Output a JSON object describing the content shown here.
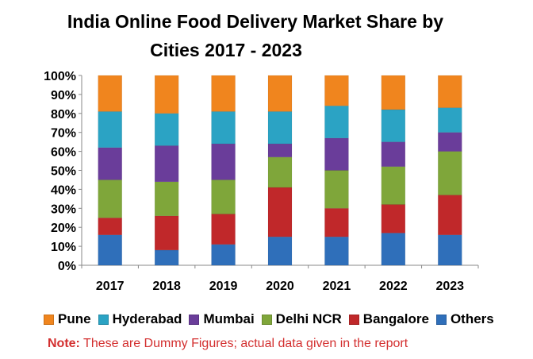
{
  "chart_data": {
    "type": "bar",
    "stacked": true,
    "title_line1": "India Online Food Delivery Market Share by",
    "title_line2": "Cities 2017 - 2023",
    "categories": [
      "2017",
      "2018",
      "2019",
      "2020",
      "2021",
      "2022",
      "2023"
    ],
    "ylim": [
      0,
      100
    ],
    "yticks": [
      "0%",
      "10%",
      "20%",
      "30%",
      "40%",
      "50%",
      "60%",
      "70%",
      "80%",
      "90%",
      "100%"
    ],
    "grid": false,
    "legend_position": "bottom",
    "series": [
      {
        "name": "Others",
        "color": "#2f6fba",
        "values": [
          16,
          8,
          11,
          15,
          15,
          17,
          16
        ]
      },
      {
        "name": "Bangalore",
        "color": "#c0282a",
        "values": [
          9,
          18,
          16,
          26,
          15,
          15,
          21
        ]
      },
      {
        "name": "Delhi NCR",
        "color": "#7fa63a",
        "values": [
          20,
          18,
          18,
          16,
          20,
          20,
          23
        ]
      },
      {
        "name": "Mumbai",
        "color": "#6a3d9a",
        "values": [
          17,
          19,
          19,
          7,
          17,
          13,
          10
        ]
      },
      {
        "name": "Hyderabad",
        "color": "#2ba3c4",
        "values": [
          19,
          17,
          17,
          17,
          17,
          17,
          13
        ]
      },
      {
        "name": "Pune",
        "color": "#f0851e",
        "values": [
          19,
          20,
          19,
          19,
          16,
          18,
          17
        ]
      }
    ],
    "legend_order": [
      "Pune",
      "Hyderabad",
      "Mumbai",
      "Delhi NCR",
      "Bangalore",
      "Others"
    ]
  },
  "note": {
    "label": "Note:",
    "text": " These are Dummy Figures; actual data given in the report"
  }
}
